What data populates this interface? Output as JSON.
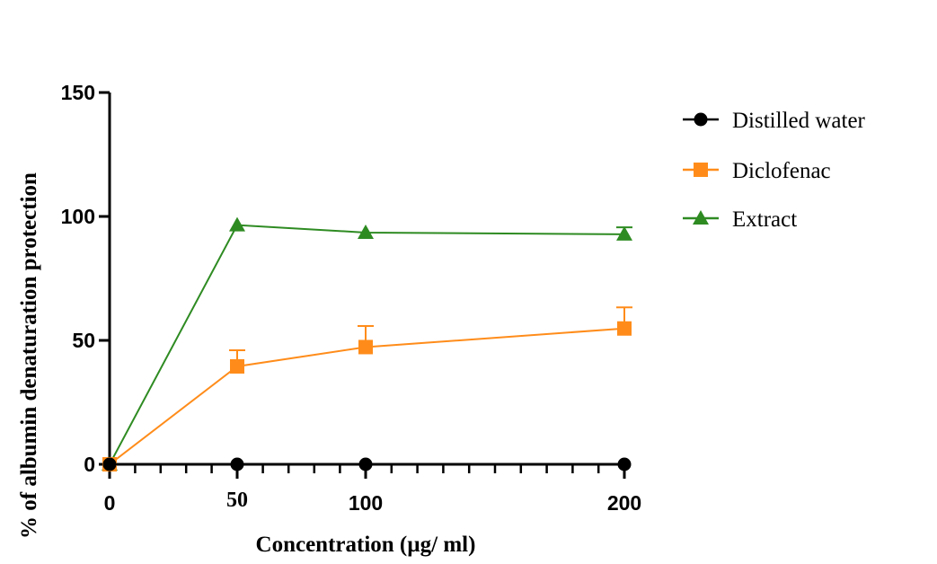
{
  "chart_data": {
    "type": "line",
    "title": "",
    "xlabel": "Concentration (µg/ ml)",
    "ylabel": "%  of albumin denaturation protection",
    "x": [
      0,
      50,
      100,
      200
    ],
    "xticks": [
      "0",
      "50",
      "100",
      "200"
    ],
    "yticks": [
      "0",
      "50",
      "100",
      "150"
    ],
    "ylim": [
      0,
      150
    ],
    "xlim": [
      0,
      200
    ],
    "grid": false,
    "legend_position": "right",
    "series": [
      {
        "name": "Distilled water",
        "marker": "circle",
        "color": "#000000",
        "values": [
          0,
          0,
          0,
          0
        ],
        "errors": [
          0,
          0,
          0,
          0
        ]
      },
      {
        "name": "Diclofenac",
        "marker": "square",
        "color": "#ff8c1a",
        "values": [
          0,
          39.5,
          47.3,
          54.8
        ],
        "errors": [
          0,
          6.5,
          8.5,
          8.5
        ]
      },
      {
        "name": "Extract",
        "marker": "triangle",
        "color": "#2e8b22",
        "values": [
          0,
          96.5,
          93.5,
          92.8
        ],
        "errors": [
          0,
          0,
          0,
          2.8
        ]
      }
    ]
  }
}
